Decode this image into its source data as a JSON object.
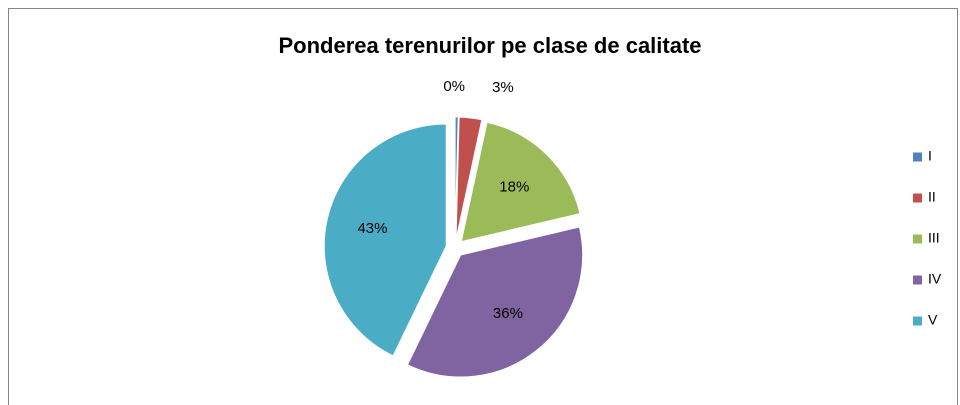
{
  "chart_data": {
    "type": "pie",
    "title": "Ponderea terenurilor pe clase de calitate",
    "categories": [
      "I",
      "II",
      "III",
      "IV",
      "V"
    ],
    "values": [
      0.4,
      3,
      18,
      36,
      43
    ],
    "value_labels": [
      "0%",
      "3%",
      "18%",
      "36%",
      "43%"
    ],
    "colors": [
      "#4f81bd",
      "#c0504d",
      "#9bbb59",
      "#8064a2",
      "#4bacc6"
    ],
    "legend": "right"
  }
}
